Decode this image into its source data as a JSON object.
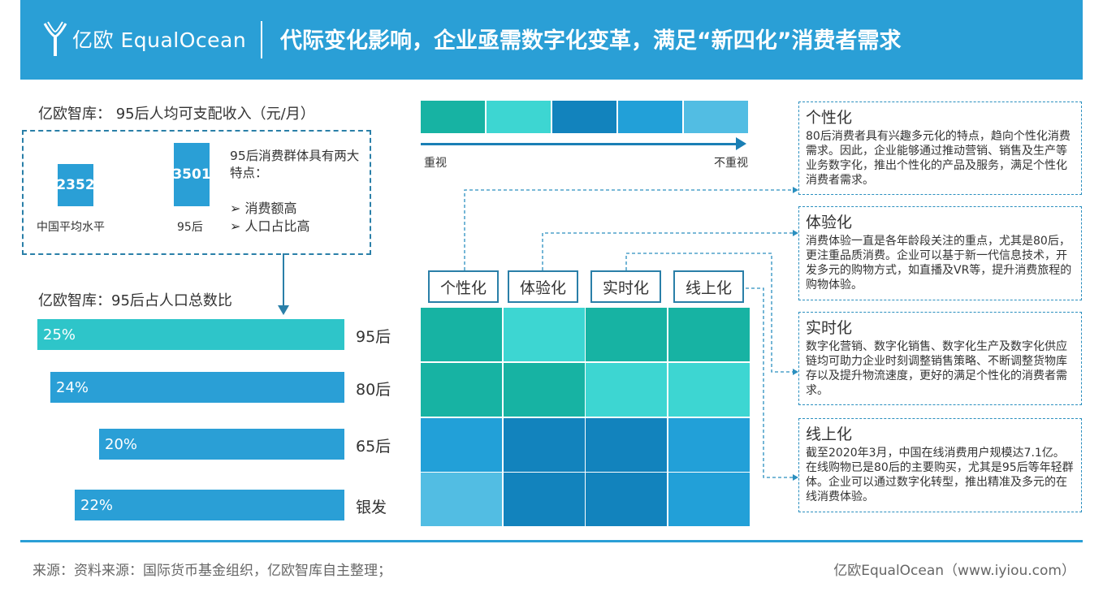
{
  "header": {
    "logo_text": "亿欧 EqualOcean",
    "title": "代际变化影响，企业亟需数字化变革，满足“新四化”消费者需求"
  },
  "colors": {
    "header_bg": "#2a9fd6",
    "bar_95": "#2ec5c9",
    "bar_other": "#2a9fd6",
    "scale": [
      "#17b3a3",
      "#3dd6d2",
      "#1283bd",
      "#22a0d8",
      "#52bde3"
    ]
  },
  "income": {
    "title": "亿欧智库： 95后人均可支配收入（元/月）",
    "bars": [
      {
        "value": "2352",
        "label": "中国平均水平"
      },
      {
        "value": "3501",
        "label": "95后"
      }
    ],
    "desc": "95后消费群体具有两大特点：",
    "points": [
      "➢  消费额高",
      "➢  人口占比高"
    ]
  },
  "chart_data": [
    {
      "type": "bar",
      "title": "亿欧智库： 95后人均可支配收入（元/月）",
      "categories": [
        "中国平均水平",
        "95后"
      ],
      "values": [
        2352,
        3501
      ]
    },
    {
      "type": "bar",
      "title": "亿欧智库：95后占人口总数比",
      "categories": [
        "95后",
        "80后",
        "65后",
        "银发"
      ],
      "values": [
        25,
        24,
        20,
        22
      ],
      "value_labels": [
        "25%",
        "24%",
        "20%",
        "22%"
      ]
    },
    {
      "type": "heatmap",
      "columns": [
        "个性化",
        "体验化",
        "实时化",
        "线上化"
      ],
      "scale": [
        "重视",
        "不重视"
      ],
      "levels": [
        [
          0,
          1,
          0,
          0
        ],
        [
          0,
          0,
          1,
          1
        ],
        [
          3,
          2,
          2,
          3
        ],
        [
          4,
          2,
          2,
          3
        ]
      ]
    }
  ],
  "population": {
    "title": "亿欧智库：95后占人口总数比",
    "rows": [
      {
        "category": "95后",
        "label": "25%"
      },
      {
        "category": "80后",
        "label": "24%"
      },
      {
        "category": "65后",
        "label": "20%"
      },
      {
        "category": "银发",
        "label": "22%"
      }
    ]
  },
  "scale": {
    "left_label": "重视",
    "right_label": "不重视"
  },
  "heatmap": {
    "columns": [
      "个性化",
      "体验化",
      "实时化",
      "线上化"
    ]
  },
  "details": [
    {
      "title": "个性化",
      "body": "80后消费者具有兴趣多元化的特点，趋向个性化消费需求。因此，企业能够通过推动营销、销售及生产等业务数字化，推出个性化的产品及服务，满足个性化消费者需求。"
    },
    {
      "title": "体验化",
      "body": "消费体验一直是各年龄段关注的重点，尤其是80后，更注重品质消费。企业可以基于新一代信息技术，开发多元的购物方式，如直播及VR等，提升消费旅程的购物体验。"
    },
    {
      "title": "实时化",
      "body": "数字化营销、数字化销售、数字化生产及数字化供应链均可助力企业时刻调整销售策略、不断调整货物库存以及提升物流速度，更好的满足个性化的消费者需求。"
    },
    {
      "title": "线上化",
      "body": "截至2020年3月，中国在线消费用户规模达7.1亿。在线购物已是80后的主要购买，尤其是95后等年轻群体。企业可以通过数字化转型，推出精准及多元的在线消费体验。"
    }
  ],
  "footer": {
    "source": "来源：资料来源：国际货币基金组织，亿欧智库自主整理；",
    "brand": "亿欧EqualOcean（www.iyiou.com）"
  }
}
